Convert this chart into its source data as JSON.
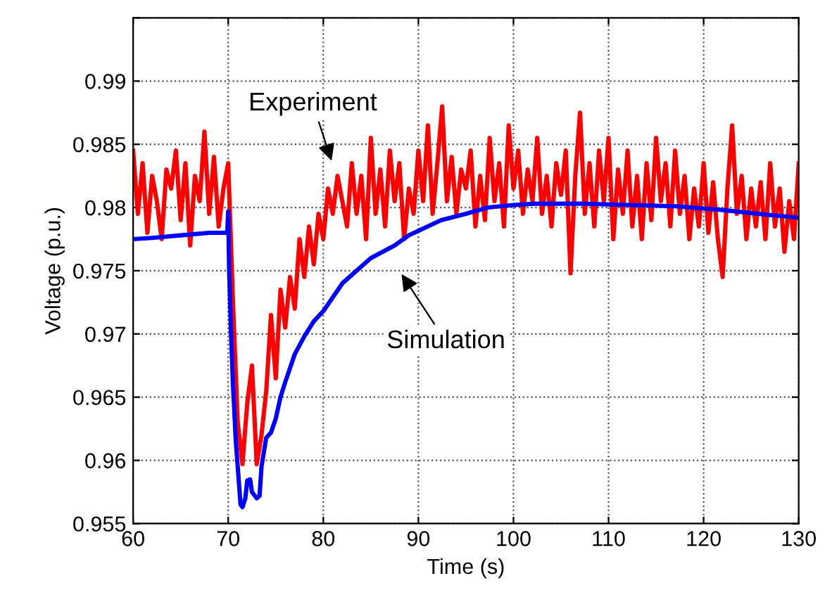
{
  "chart_data": {
    "type": "line",
    "xlabel": "Time (s)",
    "ylabel": "Voltage (p.u.)",
    "xlim": [
      60,
      130
    ],
    "ylim": [
      0.955,
      0.995
    ],
    "xticks": [
      60,
      70,
      80,
      90,
      100,
      110,
      120,
      130
    ],
    "yticks": [
      0.955,
      0.96,
      0.965,
      0.97,
      0.975,
      0.98,
      0.985,
      0.99,
      {
        "value": 0.995,
        "label": null
      }
    ],
    "grid": true,
    "line_style": "solid",
    "marker": "none",
    "series": [
      {
        "color": "#ff0000",
        "x": [
          60,
          60.5,
          61,
          61.5,
          62,
          62.5,
          63,
          63.5,
          64,
          64.5,
          65,
          65.5,
          66,
          66.5,
          67,
          67.5,
          68,
          68.5,
          69,
          69.5,
          70,
          70.5,
          71,
          71.5,
          72,
          72.5,
          73,
          73.5,
          74,
          74.5,
          75,
          75.5,
          76,
          76.5,
          77,
          77.5,
          78,
          78.5,
          79,
          79.5,
          80,
          80.5,
          81,
          81.5,
          82,
          82.5,
          83,
          83.5,
          84,
          84.5,
          85,
          85.5,
          86,
          86.5,
          87,
          87.5,
          88,
          88.5,
          89,
          89.5,
          90,
          90.5,
          91,
          91.5,
          92,
          92.5,
          93,
          93.5,
          94,
          94.5,
          95,
          95.5,
          96,
          96.5,
          97,
          97.5,
          98,
          98.5,
          99,
          99.5,
          100,
          100.5,
          101,
          101.5,
          102,
          102.5,
          103,
          103.5,
          104,
          104.5,
          105,
          105.5,
          106,
          106.5,
          107,
          107.5,
          108,
          108.5,
          109,
          109.5,
          110,
          110.5,
          111,
          111.5,
          112,
          112.5,
          113,
          113.5,
          114,
          114.5,
          115,
          115.5,
          116,
          116.5,
          117,
          117.5,
          118,
          118.5,
          119,
          119.5,
          120,
          120.5,
          121,
          121.5,
          122,
          122.5,
          123,
          123.5,
          124,
          124.5,
          125,
          125.5,
          126,
          126.5,
          127,
          127.5,
          128,
          128.5,
          129,
          129.5,
          130
        ],
        "values": [
          0.9845,
          0.9795,
          0.9835,
          0.978,
          0.9825,
          0.9805,
          0.9775,
          0.983,
          0.9815,
          0.9845,
          0.979,
          0.9835,
          0.977,
          0.9825,
          0.9805,
          0.986,
          0.9795,
          0.984,
          0.9785,
          0.9815,
          0.9835,
          0.9725,
          0.963,
          0.9597,
          0.9645,
          0.9675,
          0.9597,
          0.962,
          0.9655,
          0.9715,
          0.9665,
          0.9735,
          0.9705,
          0.9745,
          0.972,
          0.9775,
          0.9745,
          0.9785,
          0.9755,
          0.9795,
          0.9775,
          0.9815,
          0.9795,
          0.9825,
          0.9805,
          0.9785,
          0.9835,
          0.9795,
          0.9825,
          0.9775,
          0.9855,
          0.9795,
          0.983,
          0.9785,
          0.9845,
          0.9805,
          0.9835,
          0.9775,
          0.9815,
          0.9795,
          0.9845,
          0.9805,
          0.9865,
          0.9795,
          0.9835,
          0.988,
          0.9805,
          0.984,
          0.9795,
          0.983,
          0.9815,
          0.9845,
          0.9785,
          0.9825,
          0.979,
          0.9855,
          0.9805,
          0.9835,
          0.9785,
          0.9865,
          0.9815,
          0.9845,
          0.9795,
          0.983,
          0.9805,
          0.9855,
          0.9795,
          0.9825,
          0.9785,
          0.9835,
          0.981,
          0.9845,
          0.9748,
          0.9825,
          0.9875,
          0.9795,
          0.9835,
          0.9785,
          0.9845,
          0.9805,
          0.9855,
          0.9775,
          0.983,
          0.9795,
          0.9845,
          0.9785,
          0.9825,
          0.9775,
          0.9835,
          0.979,
          0.9855,
          0.9805,
          0.9835,
          0.9785,
          0.9845,
          0.9795,
          0.9825,
          0.9775,
          0.9815,
          0.9785,
          0.9835,
          0.978,
          0.982,
          0.9775,
          0.9745,
          0.9815,
          0.9865,
          0.9795,
          0.9825,
          0.9775,
          0.9815,
          0.9785,
          0.982,
          0.9775,
          0.9835,
          0.9785,
          0.9815,
          0.9765,
          0.9805,
          0.9775,
          0.9835
        ]
      },
      {
        "color": "#0000ff",
        "x": [
          60,
          62,
          65,
          68,
          69.9,
          70,
          70.1,
          70.3,
          70.5,
          70.8,
          71,
          71.3,
          71.5,
          71.8,
          72,
          72.3,
          72.5,
          73,
          73.3,
          73.5,
          74,
          74.5,
          75,
          75.5,
          76,
          77,
          78,
          79,
          80,
          82,
          85,
          87.5,
          89,
          92.4,
          95,
          97.3,
          100,
          102.3,
          107.2,
          112.2,
          117.1,
          122,
          127,
          130
        ],
        "values": [
          0.9775,
          0.9776,
          0.9778,
          0.978,
          0.978,
          0.9797,
          0.975,
          0.97,
          0.966,
          0.9615,
          0.9595,
          0.9565,
          0.9563,
          0.957,
          0.9584,
          0.9585,
          0.9575,
          0.957,
          0.9572,
          0.9595,
          0.9618,
          0.9622,
          0.9633,
          0.965,
          0.9662,
          0.9684,
          0.9698,
          0.971,
          0.9718,
          0.974,
          0.976,
          0.977,
          0.9778,
          0.979,
          0.9795,
          0.98,
          0.9802,
          0.9803,
          0.9803,
          0.9802,
          0.9801,
          0.9798,
          0.9794,
          0.9792
        ]
      }
    ],
    "annotations": [
      "Experiment",
      "Simulation"
    ]
  }
}
